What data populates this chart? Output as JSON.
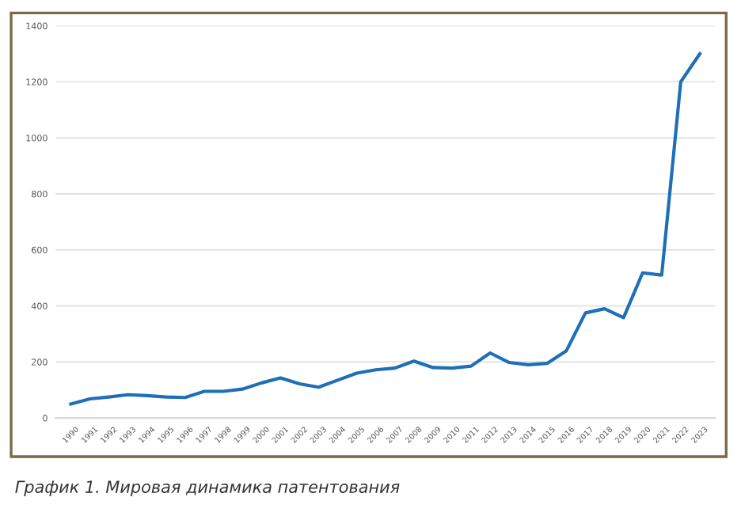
{
  "chart_data": {
    "type": "line",
    "categories": [
      "1990",
      "1991",
      "1992",
      "1993",
      "1994",
      "1995",
      "1996",
      "1997",
      "1998",
      "1999",
      "2000",
      "2001",
      "2002",
      "2003",
      "2004",
      "2005",
      "2006",
      "2007",
      "2008",
      "2009",
      "2010",
      "2011",
      "2012",
      "2013",
      "2014",
      "2015",
      "2016",
      "2017",
      "2018",
      "2019",
      "2020",
      "2021",
      "2022",
      "2023"
    ],
    "series": [
      {
        "color": "#1f6fb8",
        "values": [
          50,
          68,
          75,
          83,
          80,
          75,
          73,
          95,
          95,
          103,
          125,
          143,
          122,
          110,
          135,
          160,
          172,
          178,
          203,
          180,
          178,
          185,
          232,
          198,
          190,
          195,
          240,
          375,
          390,
          358,
          518,
          510,
          1200,
          1300
        ]
      }
    ],
    "ylim": [
      0,
      1400
    ],
    "yticks": [
      0,
      200,
      400,
      600,
      800,
      1000,
      1200,
      1400
    ],
    "grid": "y",
    "legend": false,
    "marker": "none",
    "line_style": "solid",
    "annotations": [
      "График 1. Мировая динамика патентования"
    ]
  }
}
